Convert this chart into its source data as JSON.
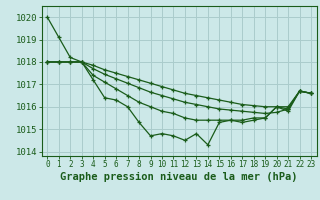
{
  "background_color": "#cce8e8",
  "grid_color": "#aacccc",
  "line_color": "#1a5c1a",
  "xlabel": "Graphe pression niveau de la mer (hPa)",
  "xlabel_fontsize": 7.5,
  "xlim": [
    -0.5,
    23.5
  ],
  "ylim": [
    1013.8,
    1020.5
  ],
  "yticks": [
    1014,
    1015,
    1016,
    1017,
    1018,
    1019,
    1020
  ],
  "xticks": [
    0,
    1,
    2,
    3,
    4,
    5,
    6,
    7,
    8,
    9,
    10,
    11,
    12,
    13,
    14,
    15,
    16,
    17,
    18,
    19,
    20,
    21,
    22,
    23
  ],
  "series": [
    [
      1020.0,
      1019.1,
      1018.2,
      1018.0,
      1017.2,
      1016.4,
      1016.3,
      1016.0,
      1015.3,
      1014.7,
      1014.8,
      1014.7,
      1014.5,
      1014.8,
      1014.3,
      1015.3,
      1015.4,
      1015.3,
      1015.4,
      1015.5,
      1016.0,
      1015.9,
      1016.7,
      1016.6
    ],
    [
      1018.0,
      1018.0,
      1018.0,
      1018.0,
      1017.85,
      1017.65,
      1017.5,
      1017.35,
      1017.2,
      1017.05,
      1016.9,
      1016.75,
      1016.6,
      1016.5,
      1016.4,
      1016.3,
      1016.2,
      1016.1,
      1016.05,
      1016.0,
      1016.0,
      1016.0,
      1016.7,
      1016.6
    ],
    [
      1018.0,
      1018.0,
      1018.0,
      1018.0,
      1017.7,
      1017.45,
      1017.25,
      1017.05,
      1016.85,
      1016.65,
      1016.5,
      1016.35,
      1016.2,
      1016.1,
      1016.0,
      1015.9,
      1015.85,
      1015.8,
      1015.75,
      1015.7,
      1015.75,
      1015.9,
      1016.7,
      1016.6
    ],
    [
      1018.0,
      1018.0,
      1018.0,
      1018.0,
      1017.4,
      1017.1,
      1016.8,
      1016.5,
      1016.2,
      1016.0,
      1015.8,
      1015.7,
      1015.5,
      1015.4,
      1015.4,
      1015.4,
      1015.4,
      1015.4,
      1015.5,
      1015.5,
      1016.0,
      1015.8,
      1016.7,
      1016.6
    ]
  ]
}
